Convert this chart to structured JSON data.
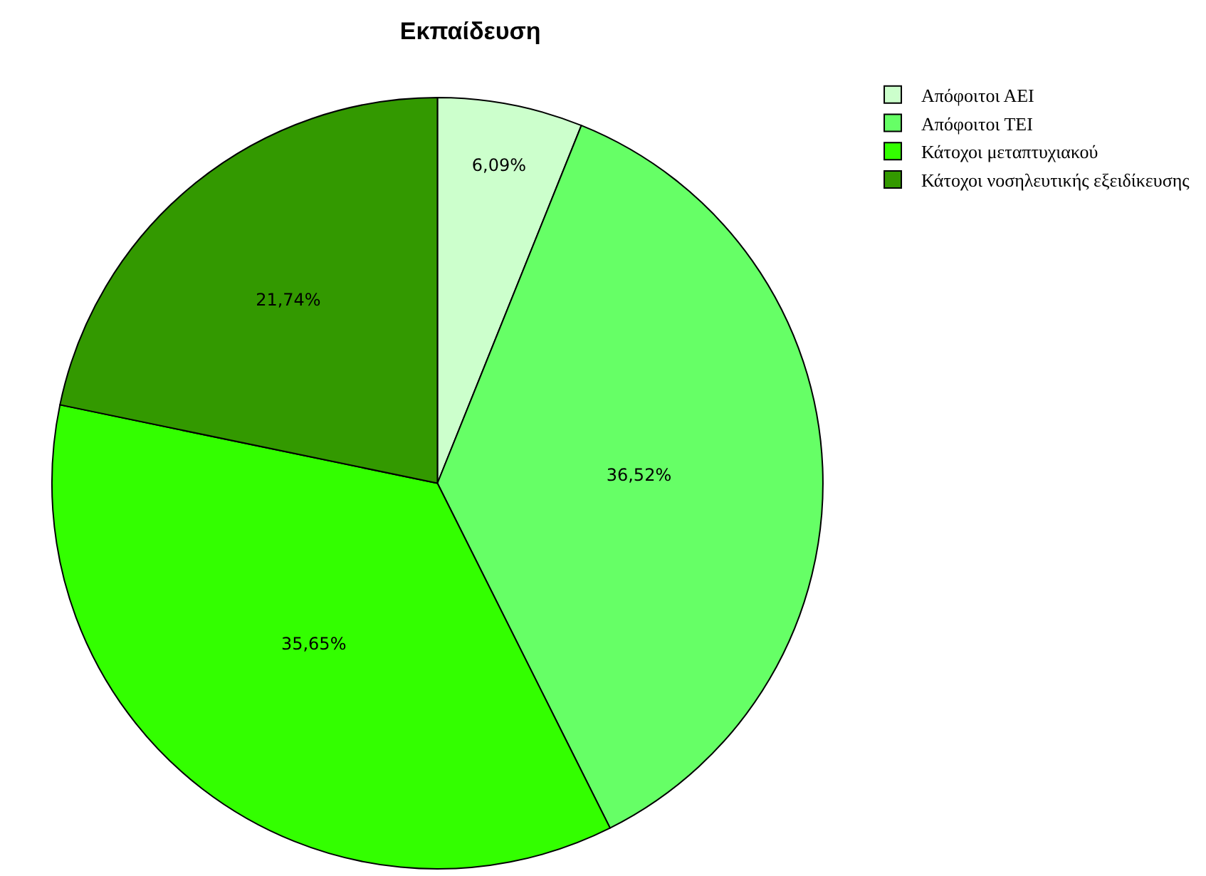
{
  "chart_data": {
    "type": "pie",
    "title": "Εκπαίδευση",
    "categories": [
      "Απόφοιτοι ΑΕΙ",
      "Απόφοιτοι ΤΕΙ",
      "Κάτοχοι μεταπτυχιακού",
      "Κάτοχοι νοσηλευτικής εξειδίκευσης"
    ],
    "values": [
      6.09,
      36.52,
      35.65,
      21.74
    ],
    "value_labels": [
      "6,09%",
      "36,52%",
      "35,65%",
      "21,74%"
    ],
    "colors": [
      "#ccffcc",
      "#66ff66",
      "#33ff00",
      "#339900"
    ],
    "legend": "top right"
  }
}
